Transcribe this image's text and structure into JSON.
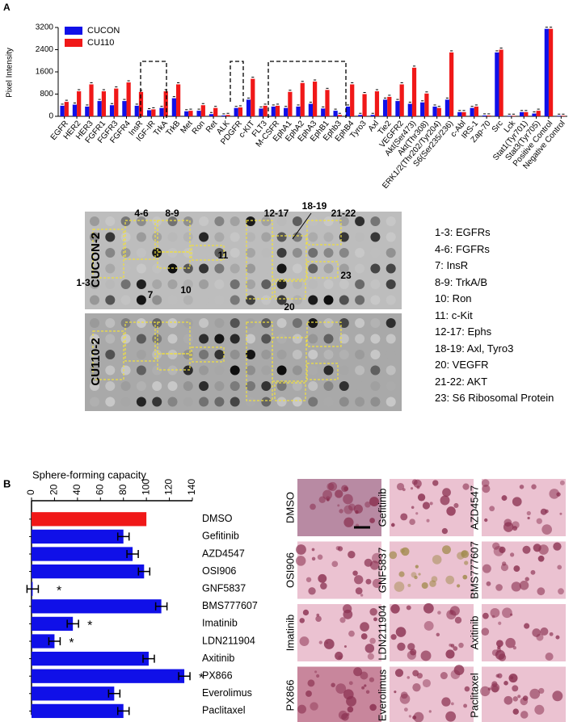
{
  "panel_labels": [
    "A",
    "B"
  ],
  "chart_data": [
    {
      "type": "bar",
      "y_label": "Pixel Intensity",
      "categories": [
        "EGFR",
        "HER2",
        "HER3",
        "FGFR1",
        "FGFR3",
        "FGFR4",
        "InsR",
        "IGF-IR",
        "TrkA",
        "TrkB",
        "Met",
        "Ron",
        "Ret",
        "ALK",
        "PDGFR",
        "c-KIT",
        "FLT3",
        "M-CSFR",
        "EphA1",
        "EphA2",
        "EphA3",
        "EphB1",
        "Ephb3",
        "EphB4",
        "Tyro3",
        "Axl",
        "Tie2",
        "VEGFR2",
        "Akt(Ser473)",
        "Akt(Thr308)",
        "ERK1/2(Thr202/Tyr204)",
        "S6(Ser235/236)",
        "c-Abl",
        "IRS-1",
        "Zap-70",
        "Src",
        "Lck",
        "Stat1(Tyr701)",
        "Stat3(Tyr705)",
        "Positive Control",
        "Negative Control"
      ],
      "series": [
        {
          "name": "CUCON",
          "color": "#1010e8",
          "values": [
            380,
            420,
            350,
            550,
            400,
            550,
            380,
            220,
            300,
            650,
            180,
            200,
            80,
            30,
            300,
            600,
            280,
            350,
            300,
            350,
            450,
            280,
            200,
            350,
            50,
            50,
            600,
            550,
            450,
            500,
            350,
            600,
            150,
            300,
            30,
            2300,
            20,
            150,
            100,
            3150,
            20
          ]
        },
        {
          "name": "CU110",
          "color": "#f01818",
          "values": [
            520,
            900,
            1150,
            900,
            1000,
            1220,
            880,
            250,
            900,
            1150,
            200,
            400,
            300,
            50,
            320,
            1350,
            380,
            380,
            880,
            1200,
            1250,
            950,
            50,
            1150,
            800,
            900,
            700,
            1150,
            1750,
            820,
            300,
            2300,
            150,
            350,
            30,
            2400,
            20,
            150,
            200,
            3150,
            20
          ]
        }
      ],
      "ylim": [
        0,
        3200
      ],
      "yticks": [
        0,
        800,
        1600,
        2400,
        3200
      ],
      "legend": "top-left"
    },
    {
      "type": "bar",
      "orientation": "horizontal",
      "title": "Sphere-forming capacity",
      "categories": [
        "DMSO",
        "Gefitinib",
        "AZD4547",
        "OSI906",
        "GNF5837",
        "BMS777607",
        "Imatinib",
        "LDN211904",
        "Axitinib",
        "PX866",
        "Everolimus",
        "Paclitaxel"
      ],
      "values": [
        100,
        80,
        88,
        98,
        1,
        113,
        36,
        20,
        102,
        133,
        72,
        80
      ],
      "colors": [
        "#f01818",
        "#1010e8",
        "#1010e8",
        "#1010e8",
        "#1010e8",
        "#1010e8",
        "#1010e8",
        "#1010e8",
        "#1010e8",
        "#1010e8",
        "#1010e8",
        "#1010e8"
      ],
      "significance": [
        null,
        null,
        null,
        null,
        "*",
        null,
        "*",
        "*",
        null,
        "*",
        null,
        null
      ],
      "xlim": [
        0,
        140
      ],
      "xticks": [
        0,
        20,
        40,
        60,
        80,
        100,
        120,
        140
      ]
    }
  ],
  "blot": {
    "rows": [
      "CUCON-2",
      "CU110-2"
    ],
    "spot_labels": [
      "4-6",
      "8-9",
      "12-17",
      "18-19",
      "21-22",
      "11",
      "1-3",
      "7",
      "10",
      "23",
      "20"
    ]
  },
  "blot_key": [
    "1-3: EGFRs",
    "4-6: FGFRs",
    "7: InsR",
    "8-9: TrkA/B",
    "10: Ron",
    "11: c-Kit",
    "12-17: Ephs",
    "18-19: Axl, Tyro3",
    "20: VEGFR",
    "21-22: AKT",
    "23: S6 Ribosomal Protein"
  ],
  "photos": [
    "DMSO",
    "Gefitinib",
    "AZD4547",
    "OSI906",
    "GNF5837",
    "BMS777607",
    "Imatinib",
    "LDN211904",
    "Axitinib",
    "PX866",
    "Everolimus",
    "Paclitaxel"
  ]
}
